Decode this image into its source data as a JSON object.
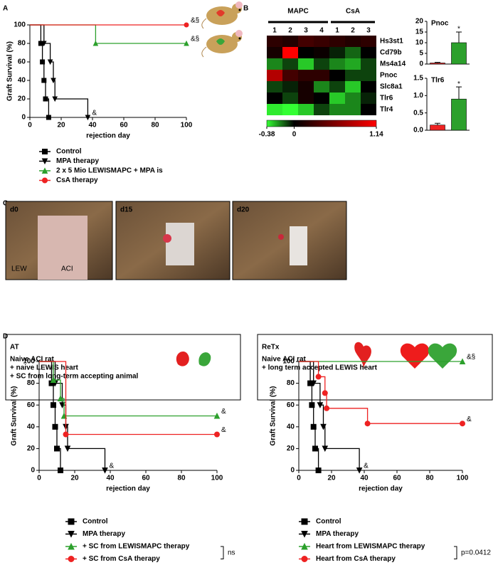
{
  "figure": {
    "panel_letters": [
      "A",
      "B",
      "C",
      "D"
    ],
    "photos": [
      {
        "label": "d0",
        "marks": [
          "LEW",
          "ACI"
        ]
      },
      {
        "label": "d15"
      },
      {
        "label": "d20"
      }
    ],
    "boxes": [
      {
        "title": "AT",
        "lines": [
          "Naive ACI rat",
          "+ naive LEWIS heart",
          "+ SC from long-term accepting animal"
        ]
      },
      {
        "title": "ReTx",
        "lines": [
          "Naive ACI rat",
          "+ long term accepted LEWIS heart"
        ]
      }
    ]
  },
  "chart_data": [
    {
      "type": "survival",
      "x_label": "rejection day",
      "y_label": "Graft Survival (%)",
      "xlim": [
        0,
        100
      ],
      "ylim": [
        0,
        100
      ],
      "xticks": [
        0,
        20,
        40,
        60,
        80,
        100
      ],
      "yticks": [
        0,
        20,
        40,
        60,
        80,
        100
      ],
      "series": [
        {
          "name": "Control",
          "color": "#000000",
          "marker": "square",
          "x": [
            0,
            7,
            8,
            9,
            10,
            12
          ],
          "values": [
            100,
            80,
            60,
            40,
            20,
            0
          ]
        },
        {
          "name": "MPA therapy",
          "color": "#000000",
          "marker": "triangle-down",
          "x": [
            0,
            9,
            13,
            15,
            16,
            37
          ],
          "values": [
            100,
            80,
            60,
            40,
            20,
            0
          ],
          "annotation": "&"
        },
        {
          "name": "2 x 5 Mio LEWISMAPC + MPA is",
          "color": "#2ca02c",
          "marker": "triangle-up",
          "x": [
            0,
            42,
            100
          ],
          "values": [
            100,
            80,
            80
          ],
          "annotation": "&§"
        },
        {
          "name": "CsA therapy",
          "color": "#ee2222",
          "marker": "circle",
          "x": [
            0,
            100
          ],
          "values": [
            100,
            100
          ],
          "annotation": "&§"
        }
      ]
    },
    {
      "type": "heatmap",
      "groups": [
        {
          "name": "MAPC",
          "color": "#22bb22",
          "span": 4
        },
        {
          "name": "CsA",
          "color": "#ee2222",
          "span": 3
        }
      ],
      "column_labels": [
        "1",
        "2",
        "3",
        "4",
        "1",
        "2",
        "3"
      ],
      "rows": [
        "Hs3st1",
        "Cd79b",
        "Ms4a14",
        "Pnoc",
        "Slc8a1",
        "Tlr6",
        "Tlr4"
      ],
      "values": [
        [
          0.2,
          0.15,
          0.3,
          0.25,
          0.2,
          0.15,
          0.2
        ],
        [
          0.1,
          1.14,
          0.0,
          0.05,
          -0.05,
          -0.15,
          0.0
        ],
        [
          -0.2,
          -0.1,
          -0.3,
          -0.1,
          -0.2,
          -0.25,
          -0.1
        ],
        [
          0.8,
          0.3,
          0.2,
          0.2,
          0.0,
          -0.1,
          -0.1
        ],
        [
          -0.1,
          -0.05,
          0.1,
          -0.2,
          -0.1,
          -0.3,
          0.0
        ],
        [
          0.0,
          -0.1,
          0.1,
          0.0,
          -0.3,
          -0.2,
          -0.05
        ],
        [
          -0.35,
          -0.38,
          -0.3,
          -0.1,
          -0.2,
          -0.2,
          0.0
        ]
      ],
      "colorbar_ticks": [
        -0.38,
        0,
        1.14
      ],
      "low_color": "#33ff33",
      "mid_color": "#000000",
      "high_color": "#ff0000"
    },
    {
      "type": "bar",
      "title": "Pnoc",
      "categories": [
        null,
        null
      ],
      "values": [
        0.5,
        10
      ],
      "errors": [
        0.3,
        5
      ],
      "colors": [
        "#ee2222",
        "#2ca02c"
      ],
      "ylim": [
        0,
        20
      ],
      "yticks": [
        0,
        5,
        10,
        15,
        20
      ],
      "annotation": "*"
    },
    {
      "type": "bar",
      "title": "Tlr6",
      "categories": [
        null,
        null
      ],
      "values": [
        0.15,
        0.9
      ],
      "errors": [
        0.05,
        0.35
      ],
      "colors": [
        "#ee2222",
        "#2ca02c"
      ],
      "ylim": [
        0,
        1.5
      ],
      "yticks": [
        {
          "value": 0,
          "label": "0.0"
        },
        {
          "value": 0.5,
          "label": "0.5"
        },
        {
          "value": 1,
          "label": "1.0"
        },
        {
          "value": 1.5,
          "label": "1.5"
        }
      ],
      "annotation": "*"
    },
    {
      "type": "survival",
      "x_label": "rejection day",
      "y_label": "Graft Survival (%)",
      "xlim": [
        0,
        100
      ],
      "ylim": [
        0,
        100
      ],
      "xticks": [
        0,
        20,
        40,
        60,
        80,
        100
      ],
      "yticks": [
        0,
        20,
        40,
        60,
        80,
        100
      ],
      "series": [
        {
          "name": "Control",
          "color": "#000000",
          "marker": "square",
          "x": [
            0,
            7,
            8,
            9,
            10,
            12
          ],
          "values": [
            100,
            80,
            60,
            40,
            20,
            0
          ]
        },
        {
          "name": "MPA therapy",
          "color": "#000000",
          "marker": "triangle-down",
          "x": [
            0,
            9,
            13,
            15,
            16,
            37
          ],
          "values": [
            100,
            80,
            60,
            40,
            20,
            0
          ],
          "annotation": "&"
        },
        {
          "name": "+ SC from LEWISMAPC therapy",
          "color": "#2ca02c",
          "marker": "triangle-up",
          "x": [
            0,
            8,
            12,
            14,
            100
          ],
          "values": [
            100,
            83,
            66,
            50,
            50
          ],
          "annotation": "&"
        },
        {
          "name": "+ SC from CsA therapy",
          "color": "#ee2222",
          "marker": "circle",
          "x": [
            0,
            15,
            100
          ],
          "values": [
            100,
            33,
            33
          ],
          "annotation": "&"
        }
      ],
      "legend_note": "ns"
    },
    {
      "type": "survival",
      "x_label": "rejection day",
      "y_label": "Graft Survival (%)",
      "xlim": [
        0,
        100
      ],
      "ylim": [
        0,
        100
      ],
      "xticks": [
        0,
        20,
        40,
        60,
        80,
        100
      ],
      "yticks": [
        0,
        20,
        40,
        60,
        80,
        100
      ],
      "series": [
        {
          "name": "Control",
          "color": "#000000",
          "marker": "square",
          "x": [
            0,
            7,
            8,
            9,
            10,
            12
          ],
          "values": [
            100,
            80,
            60,
            40,
            20,
            0
          ]
        },
        {
          "name": "MPA therapy",
          "color": "#000000",
          "marker": "triangle-down",
          "x": [
            0,
            9,
            13,
            15,
            16,
            37
          ],
          "values": [
            100,
            80,
            60,
            40,
            20,
            0
          ],
          "annotation": "&"
        },
        {
          "name": "Heart from LEWISMAPC therapy",
          "color": "#2ca02c",
          "marker": "triangle-up",
          "x": [
            0,
            100
          ],
          "values": [
            100,
            100
          ],
          "annotation": "&§"
        },
        {
          "name": "Heart from CsA therapy",
          "color": "#ee2222",
          "marker": "circle",
          "x": [
            0,
            12,
            16,
            17,
            42,
            100
          ],
          "values": [
            100,
            86,
            71,
            57,
            43,
            43
          ],
          "annotation": "&"
        }
      ],
      "legend_note": "p=0.0412"
    }
  ]
}
